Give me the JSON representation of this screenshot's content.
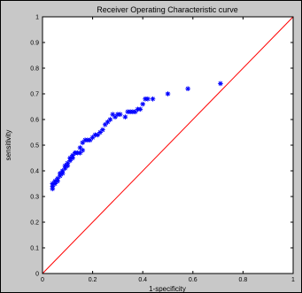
{
  "chart_data": {
    "type": "scatter",
    "title": "Receiver Operating Characteristic curve",
    "xlabel": "1-specificity",
    "ylabel": "sensitivity",
    "xlim": [
      0,
      1
    ],
    "ylim": [
      0,
      1
    ],
    "x_ticks": [
      "0",
      "0.2",
      "0.4",
      "0.6",
      "0.8",
      "1"
    ],
    "y_ticks": [
      "0",
      "0.1",
      "0.2",
      "0.3",
      "0.4",
      "0.5",
      "0.6",
      "0.7",
      "0.8",
      "0.9",
      "1"
    ],
    "grid": false,
    "legend": "none",
    "colors": {
      "figure_background": "#c8c8c8",
      "axes_background": "#ffffff",
      "markers": "#0000ff",
      "reference_line": "#ff0000"
    },
    "series": [
      {
        "style": "asterisk markers",
        "points": [
          [
            0.04,
            0.33
          ],
          [
            0.04,
            0.34
          ],
          [
            0.04,
            0.35
          ],
          [
            0.05,
            0.35
          ],
          [
            0.05,
            0.36
          ],
          [
            0.06,
            0.36
          ],
          [
            0.06,
            0.37
          ],
          [
            0.07,
            0.38
          ],
          [
            0.07,
            0.39
          ],
          [
            0.08,
            0.39
          ],
          [
            0.08,
            0.4
          ],
          [
            0.09,
            0.41
          ],
          [
            0.09,
            0.42
          ],
          [
            0.1,
            0.42
          ],
          [
            0.1,
            0.43
          ],
          [
            0.11,
            0.44
          ],
          [
            0.11,
            0.45
          ],
          [
            0.12,
            0.45
          ],
          [
            0.12,
            0.46
          ],
          [
            0.13,
            0.47
          ],
          [
            0.13,
            0.47
          ],
          [
            0.14,
            0.47
          ],
          [
            0.15,
            0.47
          ],
          [
            0.15,
            0.49
          ],
          [
            0.16,
            0.48
          ],
          [
            0.16,
            0.51
          ],
          [
            0.17,
            0.52
          ],
          [
            0.18,
            0.52
          ],
          [
            0.19,
            0.52
          ],
          [
            0.2,
            0.53
          ],
          [
            0.21,
            0.54
          ],
          [
            0.22,
            0.54
          ],
          [
            0.23,
            0.55
          ],
          [
            0.24,
            0.56
          ],
          [
            0.25,
            0.58
          ],
          [
            0.26,
            0.59
          ],
          [
            0.27,
            0.6
          ],
          [
            0.28,
            0.62
          ],
          [
            0.29,
            0.61
          ],
          [
            0.3,
            0.62
          ],
          [
            0.31,
            0.62
          ],
          [
            0.33,
            0.61
          ],
          [
            0.34,
            0.63
          ],
          [
            0.35,
            0.63
          ],
          [
            0.36,
            0.63
          ],
          [
            0.37,
            0.63
          ],
          [
            0.38,
            0.64
          ],
          [
            0.39,
            0.64
          ],
          [
            0.4,
            0.66
          ],
          [
            0.41,
            0.68
          ],
          [
            0.42,
            0.68
          ],
          [
            0.44,
            0.68
          ],
          [
            0.5,
            0.7
          ],
          [
            0.58,
            0.72
          ],
          [
            0.71,
            0.74
          ]
        ]
      },
      {
        "style": "line",
        "points": [
          [
            0,
            0
          ],
          [
            1,
            1
          ]
        ]
      }
    ]
  }
}
